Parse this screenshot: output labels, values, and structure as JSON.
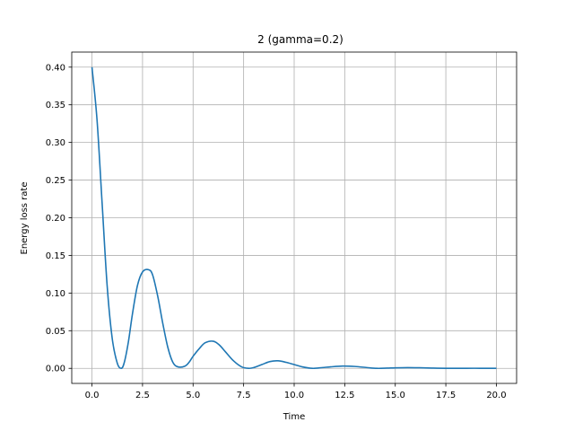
{
  "chart_data": {
    "type": "line",
    "title": "2 (gamma=0.2)",
    "xlabel": "Time",
    "ylabel": "Energy loss rate",
    "xlim": [
      -1.0,
      21.0
    ],
    "ylim": [
      -0.02,
      0.42
    ],
    "xticks": [
      0.0,
      2.5,
      5.0,
      7.5,
      10.0,
      12.5,
      15.0,
      17.5,
      20.0
    ],
    "xtick_labels": [
      "0.0",
      "2.5",
      "5.0",
      "7.5",
      "10.0",
      "12.5",
      "15.0",
      "17.5",
      "20.0"
    ],
    "yticks": [
      0.0,
      0.05,
      0.1,
      0.15,
      0.2,
      0.25,
      0.3,
      0.35,
      0.4
    ],
    "ytick_labels": [
      "0.00",
      "0.05",
      "0.10",
      "0.15",
      "0.20",
      "0.25",
      "0.30",
      "0.35",
      "0.40"
    ],
    "grid": true,
    "color": "#1f77b4",
    "series": [
      {
        "x": [
          0.0,
          0.25,
          0.5,
          0.75,
          1.0,
          1.25,
          1.45,
          1.6,
          1.8,
          2.0,
          2.25,
          2.5,
          2.8,
          3.0,
          3.25,
          3.5,
          3.75,
          4.0,
          4.25,
          4.6,
          4.8,
          5.0,
          5.3,
          5.6,
          6.0,
          6.3,
          6.6,
          7.0,
          7.4,
          7.75,
          8.0,
          8.4,
          8.8,
          9.2,
          9.6,
          10.0,
          10.4,
          10.9,
          11.4,
          11.8,
          12.4,
          13.0,
          13.6,
          14.1,
          14.6,
          15.0,
          15.6,
          16.2,
          16.8,
          17.5,
          18.5,
          19.2,
          20.0
        ],
        "y": [
          0.4,
          0.33,
          0.22,
          0.11,
          0.04,
          0.007,
          0.0,
          0.008,
          0.035,
          0.072,
          0.11,
          0.128,
          0.131,
          0.124,
          0.096,
          0.06,
          0.028,
          0.008,
          0.002,
          0.003,
          0.008,
          0.016,
          0.026,
          0.034,
          0.036,
          0.031,
          0.022,
          0.01,
          0.002,
          0.0,
          0.001,
          0.005,
          0.009,
          0.01,
          0.008,
          0.005,
          0.002,
          0.0,
          0.001,
          0.002,
          0.003,
          0.0025,
          0.001,
          0.0,
          0.0003,
          0.0007,
          0.001,
          0.0008,
          0.0004,
          0.0001,
          0.0001,
          0.0001,
          0.0
        ]
      }
    ]
  }
}
